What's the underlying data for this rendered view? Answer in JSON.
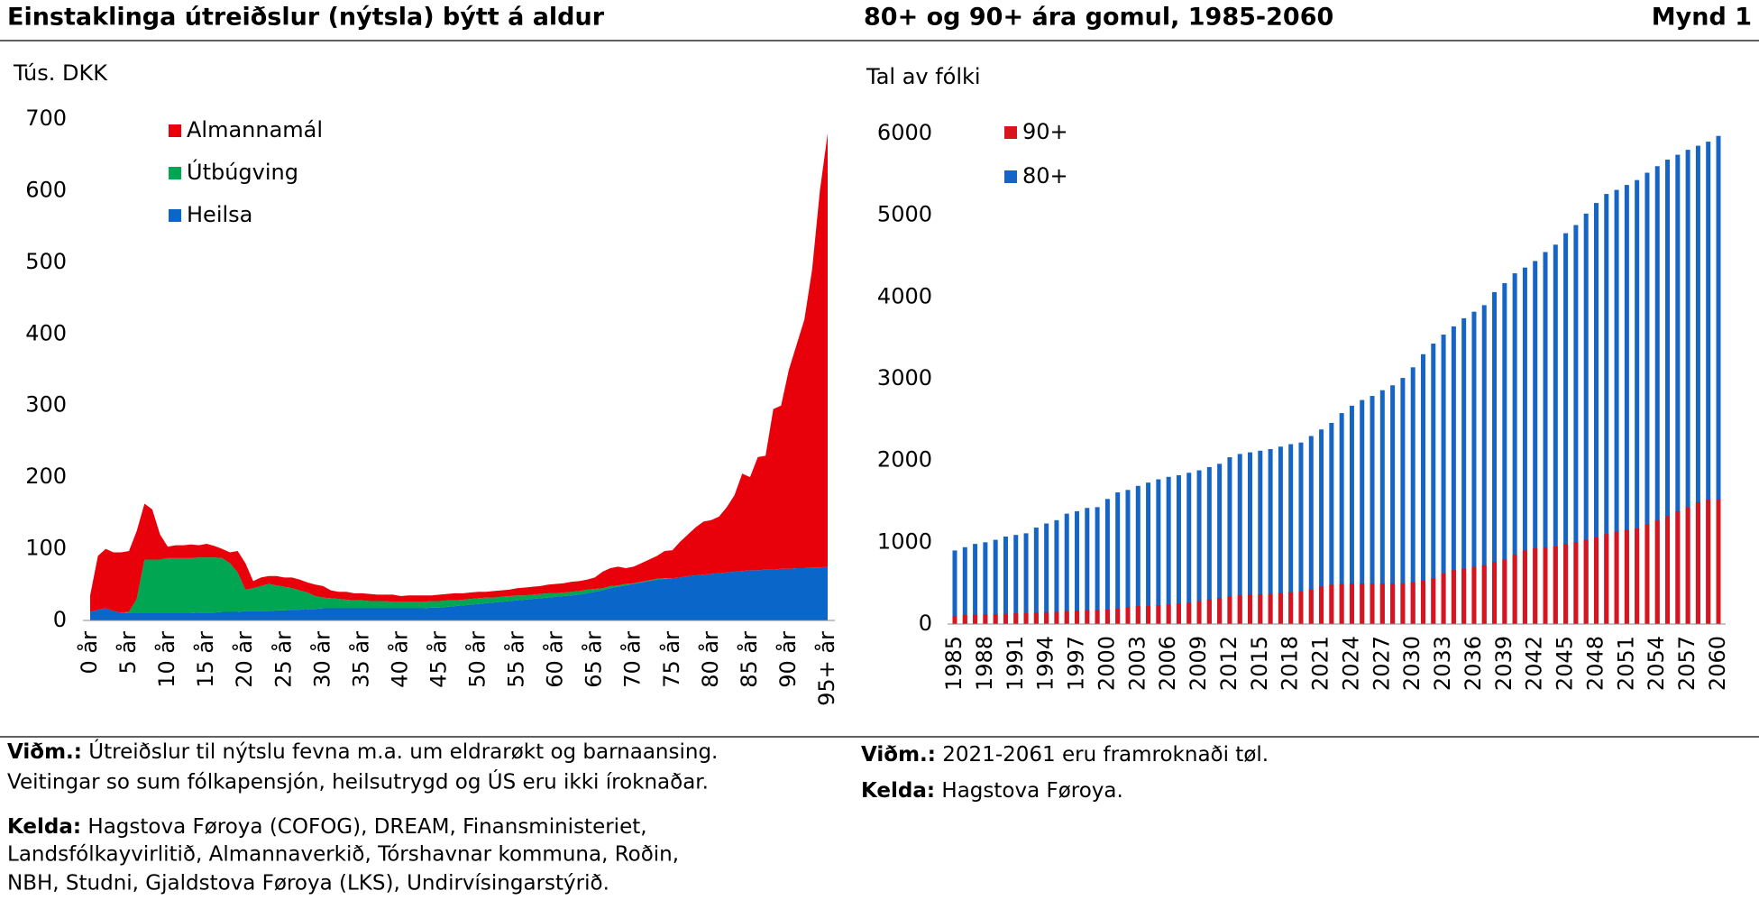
{
  "header": {
    "left_title": "Einstaklinga útreiðslur (nýtsla) býtt á aldur",
    "right_title": "80+ og 90+ ára gomul, 1985-2060",
    "figure": "Mynd 1"
  },
  "chart_data": [
    {
      "type": "area",
      "stacked": true,
      "y_label": "Tús. DKK",
      "categories": [
        "0 år",
        null,
        null,
        null,
        null,
        "5 år",
        null,
        null,
        null,
        null,
        "10 år",
        null,
        null,
        null,
        null,
        "15 år",
        null,
        null,
        null,
        null,
        "20 år",
        null,
        null,
        null,
        null,
        "25 år",
        null,
        null,
        null,
        null,
        "30 år",
        null,
        null,
        null,
        null,
        "35 år",
        null,
        null,
        null,
        null,
        "40 år",
        null,
        null,
        null,
        null,
        "45 år",
        null,
        null,
        null,
        null,
        "50 år",
        null,
        null,
        null,
        null,
        "55 år",
        null,
        null,
        null,
        null,
        "60 år",
        null,
        null,
        null,
        null,
        "65 år",
        null,
        null,
        null,
        null,
        "70 år",
        null,
        null,
        null,
        null,
        "75 år",
        null,
        null,
        null,
        null,
        "80 år",
        null,
        null,
        null,
        null,
        "85 år",
        null,
        null,
        null,
        null,
        "90 år",
        null,
        null,
        null,
        null,
        "95+ år"
      ],
      "series": [
        {
          "name": "Heilsa",
          "color": "#0a66c8",
          "values": [
            12,
            15,
            17,
            13,
            11,
            10,
            10,
            10,
            10,
            10,
            10,
            10,
            10,
            10,
            11,
            11,
            11,
            12,
            12,
            12,
            13,
            13,
            13,
            13,
            14,
            14,
            15,
            15,
            16,
            16,
            17,
            17,
            17,
            17,
            17,
            17,
            17,
            17,
            17,
            17,
            17,
            17,
            17,
            17,
            18,
            18,
            19,
            20,
            21,
            22,
            23,
            24,
            25,
            26,
            27,
            28,
            29,
            30,
            31,
            32,
            33,
            34,
            35,
            36,
            38,
            40,
            42,
            45,
            47,
            49,
            51,
            53,
            55,
            57,
            58,
            59,
            60,
            62,
            63,
            64,
            65,
            66,
            67,
            68,
            69,
            70,
            70,
            71,
            71,
            72,
            72,
            73,
            73,
            74,
            74,
            75
          ]
        },
        {
          "name": "Útbúgving",
          "color": "#00a651",
          "values": [
            0,
            0,
            0,
            0,
            0,
            2,
            20,
            75,
            75,
            75,
            77,
            77,
            77,
            77,
            77,
            77,
            77,
            75,
            68,
            55,
            30,
            32,
            35,
            38,
            35,
            33,
            30,
            27,
            23,
            18,
            15,
            14,
            13,
            12,
            11,
            11,
            10,
            10,
            10,
            9,
            9,
            9,
            9,
            9,
            9,
            9,
            9,
            8,
            8,
            8,
            8,
            8,
            7,
            7,
            7,
            7,
            6,
            6,
            6,
            6,
            5,
            5,
            5,
            5,
            5,
            4,
            3,
            3,
            2,
            2,
            1,
            1,
            1,
            1,
            1,
            0,
            0,
            0,
            0,
            0,
            0,
            0,
            0,
            0,
            0,
            0,
            0,
            0,
            0,
            0,
            0,
            0,
            0,
            0,
            0,
            0
          ]
        },
        {
          "name": "Almannamál",
          "color": "#e8000b",
          "values": [
            23,
            75,
            83,
            82,
            84,
            85,
            95,
            78,
            70,
            35,
            16,
            18,
            18,
            19,
            17,
            19,
            16,
            13,
            15,
            30,
            37,
            10,
            12,
            11,
            13,
            13,
            15,
            15,
            14,
            16,
            16,
            11,
            10,
            11,
            10,
            10,
            10,
            9,
            9,
            10,
            8,
            9,
            9,
            9,
            8,
            9,
            9,
            10,
            9,
            9,
            9,
            8,
            9,
            9,
            9,
            10,
            11,
            11,
            11,
            12,
            13,
            13,
            14,
            14,
            14,
            16,
            23,
            25,
            26,
            22,
            23,
            26,
            29,
            32,
            38,
            39,
            50,
            58,
            67,
            74,
            75,
            79,
            91,
            107,
            136,
            130,
            158,
            159,
            224,
            228,
            278,
            312,
            347,
            416,
            526,
            605
          ]
        }
      ],
      "ylim": [
        0,
        700
      ],
      "yticks": [
        0,
        100,
        200,
        300,
        400,
        500,
        600,
        700
      ]
    },
    {
      "type": "bar",
      "overlap": true,
      "y_label": "Tal av fólki",
      "categories": [
        "1985",
        null,
        null,
        "1988",
        null,
        null,
        "1991",
        null,
        null,
        "1994",
        null,
        null,
        "1997",
        null,
        null,
        "2000",
        null,
        null,
        "2003",
        null,
        null,
        "2006",
        null,
        null,
        "2009",
        null,
        null,
        "2012",
        null,
        null,
        "2015",
        null,
        null,
        "2018",
        null,
        null,
        "2021",
        null,
        null,
        "2024",
        null,
        null,
        "2027",
        null,
        null,
        "2030",
        null,
        null,
        "2033",
        null,
        null,
        "2036",
        null,
        null,
        "2039",
        null,
        null,
        "2042",
        null,
        null,
        "2045",
        null,
        null,
        "2048",
        null,
        null,
        "2051",
        null,
        null,
        "2054",
        null,
        null,
        "2057",
        null,
        null,
        "2060"
      ],
      "series": [
        {
          "name": "80+",
          "color": "#1664c4",
          "values": [
            900,
            940,
            980,
            1000,
            1030,
            1070,
            1090,
            1110,
            1180,
            1230,
            1270,
            1350,
            1380,
            1420,
            1430,
            1530,
            1610,
            1640,
            1690,
            1730,
            1770,
            1800,
            1820,
            1850,
            1880,
            1920,
            1960,
            2040,
            2080,
            2100,
            2120,
            2140,
            2170,
            2200,
            2220,
            2300,
            2380,
            2460,
            2580,
            2670,
            2740,
            2790,
            2860,
            2920,
            3010,
            3140,
            3300,
            3430,
            3540,
            3640,
            3740,
            3820,
            3900,
            4060,
            4170,
            4290,
            4360,
            4440,
            4550,
            4640,
            4780,
            4880,
            5020,
            5150,
            5260,
            5310,
            5370,
            5430,
            5520,
            5600,
            5680,
            5740,
            5800,
            5850,
            5900,
            5970
          ]
        },
        {
          "name": "90+",
          "color": "#d8141e",
          "values": [
            100,
            110,
            115,
            120,
            120,
            125,
            130,
            135,
            140,
            145,
            150,
            160,
            165,
            170,
            170,
            175,
            190,
            210,
            220,
            225,
            230,
            240,
            250,
            260,
            280,
            300,
            320,
            340,
            350,
            360,
            365,
            370,
            380,
            390,
            400,
            420,
            460,
            480,
            490,
            495,
            495,
            495,
            495,
            495,
            500,
            510,
            530,
            560,
            620,
            660,
            680,
            700,
            720,
            760,
            790,
            850,
            900,
            930,
            940,
            950,
            980,
            1000,
            1030,
            1060,
            1100,
            1130,
            1150,
            1170,
            1220,
            1270,
            1320,
            1380,
            1430,
            1490,
            1520,
            1520
          ]
        }
      ],
      "ylim": [
        0,
        6000
      ],
      "yticks": [
        0,
        1000,
        2000,
        3000,
        4000,
        5000,
        6000
      ]
    }
  ],
  "notes": {
    "left": {
      "note_label": "Viðm.:",
      "note_lines": [
        " Útreiðslur til nýtslu fevna m.a. um eldrarøkt og barnaansing.",
        "Veitingar so sum fólkapensjón, heilsutrygd og ÚS eru ikki íroknaðar."
      ],
      "source_label": "Kelda:",
      "source_lines": [
        " Hagstova Føroya (COFOG), DREAM, Finansministeriet,",
        "Landsfólkayvirlitið, Almannaverkið, Tórshavnar kommuna, Roðin,",
        "NBH, Studni, Gjaldstova Føroya (LKS), Undirvísingarstýrið."
      ]
    },
    "right": {
      "note_label": "Viðm.:",
      "note_lines": [
        " 2021-2061 eru framroknaði tøl."
      ],
      "source_label": "Kelda:",
      "source_lines": [
        " Hagstova Føroya."
      ]
    }
  }
}
